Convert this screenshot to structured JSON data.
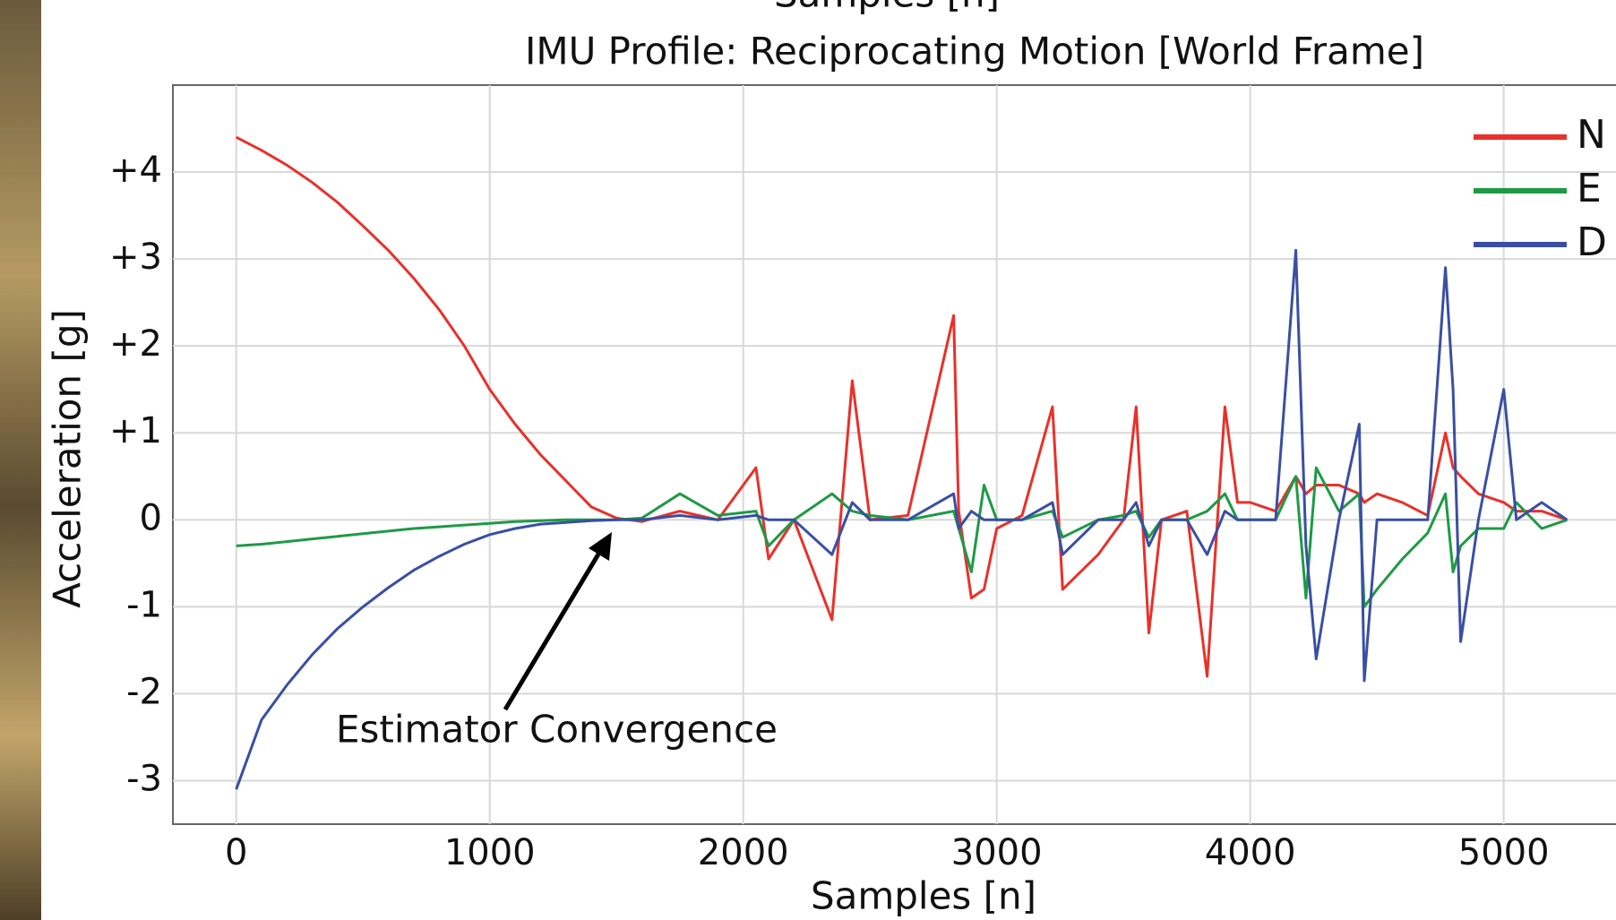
{
  "top_caption": "Samples [n]",
  "chart_data": {
    "type": "line",
    "title": "IMU Profile: Reciprocating Motion [World Frame]",
    "x_label": "Samples [n]",
    "y_label": "Acceleration [g]",
    "annotation": "Estimator Convergence",
    "x": [
      0,
      100,
      200,
      300,
      400,
      500,
      600,
      700,
      800,
      900,
      1000,
      1100,
      1200,
      1300,
      1400,
      1500,
      1600,
      1750,
      1900,
      2050,
      2100,
      2200,
      2350,
      2430,
      2500,
      2650,
      2830,
      2850,
      2900,
      2950,
      3000,
      3100,
      3220,
      3260,
      3400,
      3500,
      3550,
      3600,
      3650,
      3750,
      3830,
      3900,
      3950,
      4000,
      4100,
      4180,
      4220,
      4260,
      4350,
      4430,
      4450,
      4500,
      4600,
      4700,
      4770,
      4800,
      4830,
      4900,
      5000,
      5050,
      5150,
      5250
    ],
    "series": [
      {
        "name": "N",
        "color": "#e8312a",
        "values": [
          4.4,
          4.25,
          4.08,
          3.88,
          3.65,
          3.38,
          3.1,
          2.78,
          2.42,
          2.0,
          1.5,
          1.1,
          0.75,
          0.45,
          0.15,
          0.02,
          -0.02,
          0.1,
          0,
          0.6,
          -0.45,
          0,
          -1.15,
          1.6,
          0,
          0.05,
          2.35,
          0.1,
          -0.9,
          -0.8,
          -0.1,
          0.05,
          1.3,
          -0.8,
          -0.4,
          0,
          1.3,
          -1.3,
          0,
          0.1,
          -1.8,
          1.3,
          0.2,
          0.2,
          0.1,
          0.5,
          0.3,
          0.4,
          0.4,
          0.3,
          0.2,
          0.3,
          0.2,
          0.05,
          1.0,
          0.6,
          0.5,
          0.3,
          0.2,
          0.1,
          0.1,
          0
        ]
      },
      {
        "name": "E",
        "color": "#1e9a45",
        "values": [
          -0.3,
          -0.28,
          -0.25,
          -0.22,
          -0.19,
          -0.16,
          -0.13,
          -0.1,
          -0.08,
          -0.06,
          -0.04,
          -0.02,
          -0.01,
          0,
          0,
          0,
          0.02,
          0.3,
          0.05,
          0.1,
          -0.3,
          0,
          0.3,
          0.1,
          0.05,
          0,
          0.1,
          -0.1,
          -0.6,
          0.4,
          0,
          0,
          0.1,
          -0.2,
          0,
          0.05,
          0.1,
          -0.2,
          0,
          0,
          0.1,
          0.3,
          0,
          0,
          0,
          0.5,
          -0.9,
          0.6,
          0.1,
          0.3,
          -1.0,
          -0.8,
          -0.45,
          -0.15,
          0.3,
          -0.6,
          -0.3,
          -0.1,
          -0.1,
          0.2,
          -0.1,
          0
        ]
      },
      {
        "name": "D",
        "color": "#3a4fa3",
        "values": [
          -3.1,
          -2.3,
          -1.9,
          -1.55,
          -1.25,
          -1.0,
          -0.78,
          -0.58,
          -0.42,
          -0.28,
          -0.17,
          -0.1,
          -0.05,
          -0.03,
          -0.01,
          0,
          0,
          0.05,
          0,
          0.05,
          0,
          0,
          -0.4,
          0.2,
          0,
          0,
          0.3,
          -0.1,
          0.1,
          0,
          0,
          0,
          0.2,
          -0.4,
          0,
          0,
          0.2,
          -0.3,
          0,
          0,
          -0.4,
          0.1,
          0,
          0,
          0,
          3.1,
          -0.3,
          -1.6,
          0,
          1.1,
          -1.85,
          0,
          0,
          0,
          2.9,
          1.5,
          -1.4,
          0,
          1.5,
          0,
          0.2,
          0
        ]
      }
    ],
    "xlim": [
      -250,
      5450
    ],
    "ylim": [
      -3.5,
      5
    ],
    "xticks": [
      0,
      1000,
      2000,
      3000,
      4000,
      5000
    ],
    "yticks": [
      {
        "value": 4,
        "label": "+4"
      },
      {
        "value": 3,
        "label": "+3"
      },
      {
        "value": 2,
        "label": "+2"
      },
      {
        "value": 1,
        "label": "+1"
      },
      0,
      -1,
      -2,
      -3
    ],
    "grid": true,
    "legend": "upper right"
  }
}
